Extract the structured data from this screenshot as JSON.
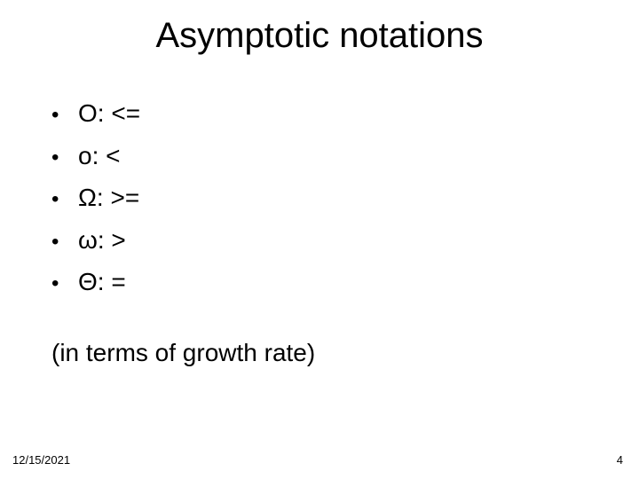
{
  "title": "Asymptotic notations",
  "bullets": [
    {
      "text": "O: <="
    },
    {
      "text": "o: <"
    },
    {
      "text": "Ω: >="
    },
    {
      "text": "ω: >"
    },
    {
      "text": "Θ: ="
    }
  ],
  "note": "(in terms of growth rate)",
  "footer": {
    "date": "12/15/2021",
    "page": "4"
  },
  "style": {
    "background_color": "#ffffff",
    "text_color": "#000000",
    "title_fontsize": 40,
    "body_fontsize": 28,
    "footer_fontsize": 13,
    "font_family": "Arial"
  }
}
